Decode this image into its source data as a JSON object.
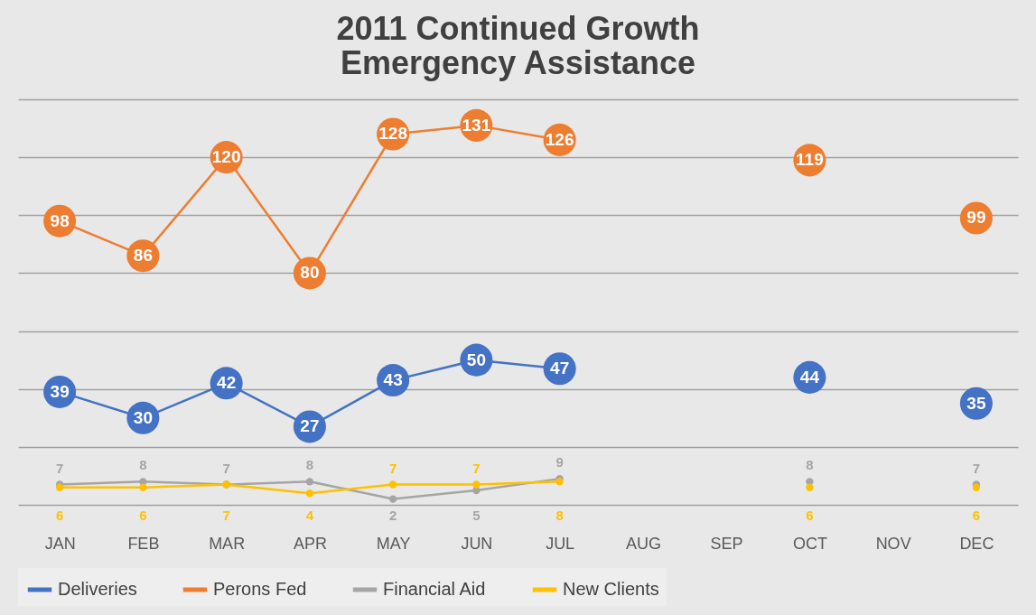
{
  "chart_data": {
    "type": "line",
    "title": [
      "2011 Continued Growth",
      "Emergency Assistance"
    ],
    "categories": [
      "JAN",
      "FEB",
      "MAR",
      "APR",
      "MAY",
      "JUN",
      "JUL",
      "AUG",
      "SEP",
      "OCT",
      "NOV",
      "DEC"
    ],
    "series": [
      {
        "name": "Deliveries",
        "color": "#4472c4",
        "values": [
          39,
          30,
          42,
          27,
          43,
          50,
          47,
          null,
          null,
          44,
          null,
          35
        ]
      },
      {
        "name": "Perons Fed",
        "color": "#ed7d31",
        "values": [
          98,
          86,
          120,
          80,
          128,
          131,
          126,
          null,
          null,
          119,
          null,
          99
        ]
      },
      {
        "name": "Financial Aid",
        "color": "#a5a5a5",
        "values": [
          7,
          8,
          7,
          8,
          2,
          5,
          9,
          null,
          null,
          8,
          null,
          7
        ]
      },
      {
        "name": "New Clients",
        "color": "#ffc000",
        "values": [
          6,
          6,
          7,
          4,
          7,
          7,
          8,
          null,
          null,
          6,
          null,
          6
        ]
      }
    ],
    "ylim": [
      0,
      140
    ],
    "yticks": [
      {
        "value": 0,
        "label": null
      },
      {
        "value": 20,
        "label": null
      },
      {
        "value": 40,
        "label": null
      },
      {
        "value": 60,
        "label": null
      },
      {
        "value": 80,
        "label": null
      },
      {
        "value": 100,
        "label": null
      },
      {
        "value": 120,
        "label": null
      },
      {
        "value": 140,
        "label": null
      }
    ],
    "tick_labels": "x",
    "grid": "y",
    "legend": "bottom",
    "marker": "circle",
    "line_style": "solid",
    "data_labels": true
  }
}
